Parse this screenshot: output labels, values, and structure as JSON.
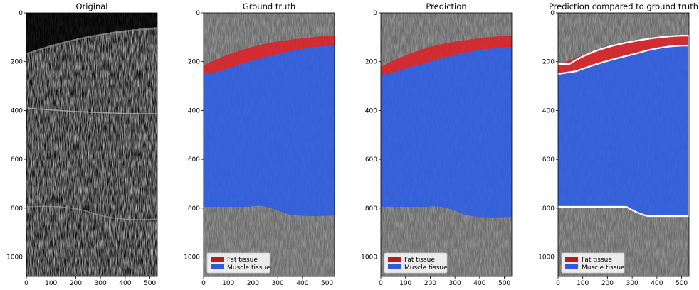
{
  "figure": {
    "panels": [
      {
        "id": "original",
        "title": "Original",
        "overlay": "none",
        "legend": false
      },
      {
        "id": "ground_truth",
        "title": "Ground truth",
        "overlay": "mask",
        "legend": true
      },
      {
        "id": "prediction",
        "title": "Prediction",
        "overlay": "mask",
        "legend": true
      },
      {
        "id": "comparison",
        "title": "Prediction compared to ground truth",
        "overlay": "mask-with-outline",
        "legend": true
      }
    ],
    "axes": {
      "x_ticks": [
        "0",
        "100",
        "200",
        "300",
        "400",
        "500"
      ],
      "y_ticks": [
        "0",
        "200",
        "400",
        "600",
        "800",
        "1000"
      ]
    },
    "legend": {
      "placement": "bottom-left",
      "items": [
        {
          "label": "Fat tissue",
          "color": "#b71c24"
        },
        {
          "label": "Muscle tissue",
          "color": "#2f5be0"
        }
      ]
    },
    "colors": {
      "fat": "#d9232a",
      "muscle": "#2e5de6",
      "outline": "#ffffff",
      "background_image": "#6b6b6b"
    }
  }
}
